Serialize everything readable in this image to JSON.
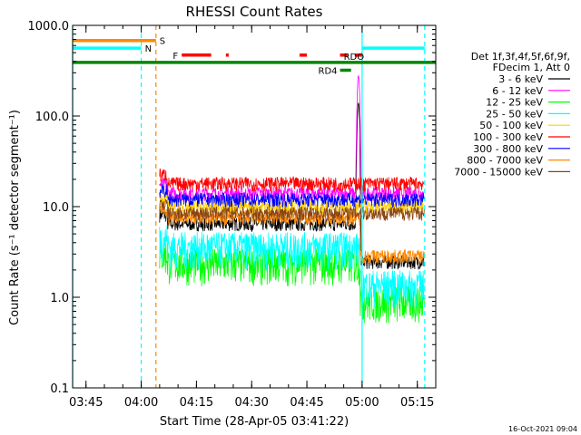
{
  "chart_data": {
    "type": "line",
    "title": "RHESSI Count Rates",
    "xlabel": "Start Time (28-Apr-05 03:41:22)",
    "ylabel": "Count Rate (s⁻¹ detector segment⁻¹)",
    "y_scale": "log",
    "ylim": [
      0.1,
      1000.0
    ],
    "xlim": [
      "03:41:22",
      "05:20:00"
    ],
    "x_ticks": [
      "03:45",
      "04:00",
      "04:15",
      "04:30",
      "04:45",
      "05:00",
      "05:15"
    ],
    "y_ticks": [
      "0.1",
      "1.0",
      "10.0",
      "100.0",
      "1000.0"
    ],
    "legend_header": [
      "Det 1f,3f,4f,5f,6f,9f,",
      "FDecim 1, Att 0"
    ],
    "legend_placement": "right",
    "series": [
      {
        "name": "3 - 6 keV",
        "color": "#000000",
        "mean": 6.5
      },
      {
        "name": "6 - 12 keV",
        "color": "#ff00ff",
        "mean": 14
      },
      {
        "name": "12 - 25 keV",
        "color": "#00ff00",
        "mean": 2.4
      },
      {
        "name": "25 - 50 keV",
        "color": "#00ffff",
        "mean": 3.6
      },
      {
        "name": "50 - 100 keV",
        "color": "#ffd000",
        "mean": 10
      },
      {
        "name": "100 - 300 keV",
        "color": "#ff0000",
        "mean": 18
      },
      {
        "name": "300 - 800 keV",
        "color": "#0000ff",
        "mean": 12
      },
      {
        "name": "800 - 7000 keV",
        "color": "#ff8800",
        "mean": 7.5
      },
      {
        "name": "7000 - 15000 keV",
        "color": "#8b4513",
        "mean": 8.5
      }
    ],
    "data_start": "04:05",
    "data_end": "05:17",
    "peak_time": "04:59",
    "peak_values": {
      "3 - 6 keV": 140,
      "6 - 12 keV": 280
    },
    "flags": [
      {
        "label": "S",
        "color": "#ff8800",
        "start": "03:41:22",
        "end": "04:04"
      },
      {
        "label": "N",
        "color": "#00ffff",
        "start": "03:41:22",
        "end": "04:00"
      },
      {
        "label": "N",
        "color": "#00ffff",
        "start": "05:00",
        "end": "05:17"
      },
      {
        "label": "F",
        "color": "#ff0000",
        "start": "04:11",
        "end": "04:19"
      },
      {
        "label": "F",
        "color": "#ff0000",
        "start": "04:23",
        "end": "04:23:45"
      },
      {
        "label": "F",
        "color": "#ff0000",
        "start": "04:43",
        "end": "04:45"
      },
      {
        "label": "F",
        "color": "#ff0000",
        "start": "04:54",
        "end": "04:56"
      },
      {
        "label": "F",
        "color": "#ff0000",
        "start": "04:58",
        "end": "05:00"
      },
      {
        "label": "RDO",
        "color": "#008800",
        "start": "03:41:22",
        "end": "05:20"
      },
      {
        "label": "RD4",
        "color": "#008800",
        "start": "04:54",
        "end": "04:57"
      }
    ],
    "vertical_markers": [
      {
        "time": "03:41:22",
        "color": "#00ffff",
        "style": "solid"
      },
      {
        "time": "04:00",
        "color": "#00ffff",
        "style": "dashed"
      },
      {
        "time": "04:04",
        "color": "#ff8800",
        "style": "dashed"
      },
      {
        "time": "05:00",
        "color": "#00ffff",
        "style": "solid"
      },
      {
        "time": "05:17",
        "color": "#00ffff",
        "style": "dashed"
      }
    ],
    "timestamp": "16-Oct-2021 09:04"
  }
}
